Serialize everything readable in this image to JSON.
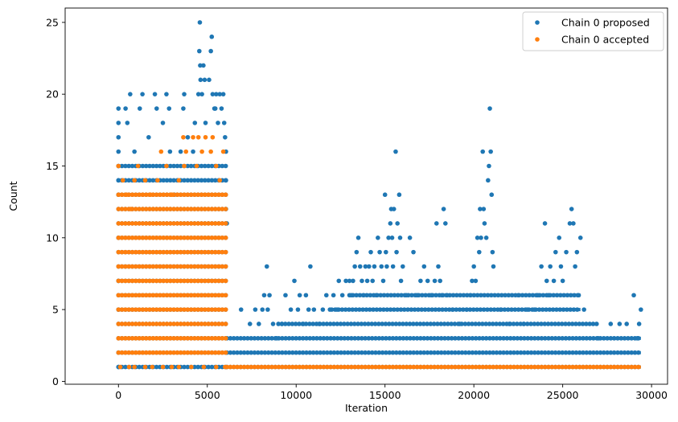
{
  "chart_data": {
    "type": "scatter",
    "title": "",
    "xlabel": "Iteration",
    "ylabel": "Count",
    "xlim": [
      -3000,
      30900
    ],
    "ylim": [
      -0.2,
      26
    ],
    "xticks": [
      0,
      5000,
      10000,
      15000,
      20000,
      25000,
      30000
    ],
    "yticks": [
      0,
      5,
      10,
      15,
      20,
      25
    ],
    "grid": false,
    "legend_position": "top-right",
    "series": [
      {
        "name": "Chain 0 proposed",
        "color": "#1f77b4",
        "points": [
          [
            0,
            1
          ],
          [
            0,
            2
          ],
          [
            0,
            5
          ],
          [
            0,
            7
          ],
          [
            0,
            10
          ],
          [
            0,
            13
          ],
          [
            0,
            14
          ],
          [
            0,
            15
          ],
          [
            0,
            16
          ],
          [
            0,
            17
          ],
          [
            0,
            18
          ],
          [
            0,
            19
          ],
          [
            400,
            19
          ],
          [
            500,
            18
          ],
          [
            660,
            20
          ],
          [
            900,
            16
          ],
          [
            1200,
            19
          ],
          [
            1350,
            20
          ],
          [
            1700,
            17
          ],
          [
            2050,
            20
          ],
          [
            2150,
            19
          ],
          [
            2500,
            18
          ],
          [
            2700,
            20
          ],
          [
            2850,
            19
          ],
          [
            2900,
            16
          ],
          [
            3150,
            13
          ],
          [
            3500,
            16
          ],
          [
            3650,
            19
          ],
          [
            3700,
            20
          ],
          [
            3900,
            17
          ],
          [
            4200,
            16
          ],
          [
            4300,
            18
          ],
          [
            4500,
            20
          ],
          [
            4580,
            25
          ],
          [
            4550,
            23
          ],
          [
            4600,
            22
          ],
          [
            4620,
            21
          ],
          [
            4700,
            20
          ],
          [
            4780,
            22
          ],
          [
            4850,
            21
          ],
          [
            4900,
            18
          ],
          [
            5100,
            21
          ],
          [
            5200,
            23
          ],
          [
            5250,
            24
          ],
          [
            5300,
            20
          ],
          [
            5400,
            19
          ],
          [
            5450,
            19
          ],
          [
            5500,
            20
          ],
          [
            5600,
            18
          ],
          [
            5700,
            20
          ],
          [
            5800,
            19
          ],
          [
            5900,
            20
          ],
          [
            5950,
            18
          ],
          [
            6000,
            17
          ],
          [
            6050,
            16
          ],
          [
            6050,
            14
          ],
          [
            6050,
            12
          ],
          [
            6100,
            11
          ],
          [
            6900,
            5
          ],
          [
            7400,
            4
          ],
          [
            7700,
            5
          ],
          [
            7900,
            4
          ],
          [
            8100,
            5
          ],
          [
            8200,
            6
          ],
          [
            8350,
            8
          ],
          [
            8400,
            5
          ],
          [
            8500,
            6
          ],
          [
            8700,
            4
          ],
          [
            8900,
            3
          ],
          [
            9200,
            4
          ],
          [
            9400,
            6
          ],
          [
            9700,
            5
          ],
          [
            9900,
            7
          ],
          [
            10100,
            5
          ],
          [
            10200,
            6
          ],
          [
            10400,
            4
          ],
          [
            10550,
            6
          ],
          [
            10700,
            5
          ],
          [
            10800,
            8
          ],
          [
            11000,
            5
          ],
          [
            11300,
            4
          ],
          [
            11500,
            5
          ],
          [
            11700,
            6
          ],
          [
            11900,
            5
          ],
          [
            12100,
            6
          ],
          [
            12300,
            5
          ],
          [
            12400,
            7
          ],
          [
            12600,
            6
          ],
          [
            12800,
            7
          ],
          [
            13000,
            7
          ],
          [
            13100,
            6
          ],
          [
            13200,
            7
          ],
          [
            13300,
            8
          ],
          [
            13400,
            9
          ],
          [
            13500,
            10
          ],
          [
            13600,
            8
          ],
          [
            13700,
            7
          ],
          [
            13800,
            6
          ],
          [
            13900,
            8
          ],
          [
            14000,
            7
          ],
          [
            14100,
            8
          ],
          [
            14200,
            9
          ],
          [
            14300,
            7
          ],
          [
            14400,
            8
          ],
          [
            14500,
            6
          ],
          [
            14600,
            10
          ],
          [
            14700,
            9
          ],
          [
            14800,
            8
          ],
          [
            14900,
            7
          ],
          [
            15000,
            13
          ],
          [
            15050,
            9
          ],
          [
            15100,
            8
          ],
          [
            15200,
            10
          ],
          [
            15300,
            11
          ],
          [
            15350,
            12
          ],
          [
            15400,
            10
          ],
          [
            15450,
            8
          ],
          [
            15500,
            12
          ],
          [
            15600,
            16
          ],
          [
            15650,
            9
          ],
          [
            15700,
            11
          ],
          [
            15800,
            13
          ],
          [
            15850,
            10
          ],
          [
            15900,
            7
          ],
          [
            16000,
            8
          ],
          [
            16200,
            6
          ],
          [
            16400,
            10
          ],
          [
            16600,
            9
          ],
          [
            16800,
            6
          ],
          [
            17000,
            7
          ],
          [
            17200,
            8
          ],
          [
            17400,
            7
          ],
          [
            17600,
            6
          ],
          [
            17800,
            7
          ],
          [
            17900,
            11
          ],
          [
            18000,
            8
          ],
          [
            18100,
            7
          ],
          [
            18200,
            6
          ],
          [
            18300,
            12
          ],
          [
            18400,
            11
          ],
          [
            18500,
            6
          ],
          [
            18800,
            5
          ],
          [
            19200,
            4
          ],
          [
            19600,
            5
          ],
          [
            19800,
            6
          ],
          [
            19900,
            7
          ],
          [
            20000,
            8
          ],
          [
            20100,
            7
          ],
          [
            20200,
            10
          ],
          [
            20300,
            9
          ],
          [
            20350,
            12
          ],
          [
            20400,
            10
          ],
          [
            20500,
            16
          ],
          [
            20550,
            12
          ],
          [
            20600,
            11
          ],
          [
            20700,
            10
          ],
          [
            20800,
            14
          ],
          [
            20850,
            15
          ],
          [
            20900,
            19
          ],
          [
            20950,
            16
          ],
          [
            21000,
            13
          ],
          [
            21050,
            9
          ],
          [
            21100,
            8
          ],
          [
            21500,
            5
          ],
          [
            22000,
            4
          ],
          [
            22500,
            6
          ],
          [
            22800,
            4
          ],
          [
            23000,
            5
          ],
          [
            23400,
            5
          ],
          [
            23600,
            6
          ],
          [
            23800,
            8
          ],
          [
            24000,
            11
          ],
          [
            24100,
            7
          ],
          [
            24200,
            6
          ],
          [
            24300,
            8
          ],
          [
            24500,
            7
          ],
          [
            24600,
            9
          ],
          [
            24800,
            10
          ],
          [
            24900,
            8
          ],
          [
            25000,
            7
          ],
          [
            25200,
            9
          ],
          [
            25400,
            11
          ],
          [
            25500,
            12
          ],
          [
            25600,
            11
          ],
          [
            25700,
            8
          ],
          [
            25800,
            9
          ],
          [
            25900,
            6
          ],
          [
            26000,
            10
          ],
          [
            26200,
            5
          ],
          [
            27000,
            3
          ],
          [
            27700,
            4
          ],
          [
            28200,
            4
          ],
          [
            28600,
            4
          ],
          [
            29000,
            6
          ],
          [
            29200,
            3
          ],
          [
            29300,
            4
          ],
          [
            29400,
            5
          ]
        ],
        "dense_runs": [
          [
            0,
            6100,
            1
          ],
          [
            0,
            6100,
            2
          ],
          [
            0,
            6100,
            3
          ],
          [
            0,
            6100,
            4
          ],
          [
            0,
            6100,
            5
          ],
          [
            0,
            6100,
            6
          ],
          [
            0,
            6100,
            7
          ],
          [
            0,
            6100,
            8
          ],
          [
            0,
            6100,
            9
          ],
          [
            0,
            6100,
            10
          ],
          [
            0,
            6100,
            11
          ],
          [
            0,
            6100,
            12
          ],
          [
            0,
            6100,
            13
          ],
          [
            0,
            6100,
            14
          ],
          [
            0,
            6100,
            15
          ],
          [
            6100,
            29400,
            1
          ],
          [
            6100,
            29400,
            2
          ],
          [
            6100,
            29400,
            3
          ],
          [
            9000,
            27000,
            4
          ],
          [
            12000,
            26000,
            5
          ],
          [
            13000,
            26000,
            6
          ]
        ]
      },
      {
        "name": "Chain 0 accepted",
        "color": "#ff7f0e",
        "points": [
          [
            0,
            15
          ],
          [
            250,
            14
          ],
          [
            450,
            13
          ],
          [
            700,
            12
          ],
          [
            900,
            14
          ],
          [
            1100,
            15
          ],
          [
            1500,
            14
          ],
          [
            1800,
            13
          ],
          [
            2200,
            14
          ],
          [
            2400,
            16
          ],
          [
            2700,
            15
          ],
          [
            3000,
            13
          ],
          [
            3400,
            14
          ],
          [
            3700,
            15
          ],
          [
            3650,
            17
          ],
          [
            3800,
            16
          ],
          [
            4200,
            17
          ],
          [
            4400,
            15
          ],
          [
            4500,
            17
          ],
          [
            4700,
            16
          ],
          [
            4900,
            17
          ],
          [
            5200,
            16
          ],
          [
            5300,
            17
          ],
          [
            5500,
            15
          ],
          [
            5700,
            14
          ],
          [
            5900,
            16
          ],
          [
            100,
            1
          ],
          [
            600,
            1
          ],
          [
            900,
            1
          ],
          [
            1500,
            1
          ],
          [
            1900,
            1
          ],
          [
            2500,
            1
          ],
          [
            3000,
            1
          ],
          [
            3400,
            1
          ],
          [
            4100,
            1
          ],
          [
            4800,
            1
          ],
          [
            5500,
            1
          ],
          [
            6000,
            1
          ]
        ],
        "dense_runs": [
          [
            0,
            6100,
            2
          ],
          [
            0,
            6100,
            3
          ],
          [
            0,
            6100,
            4
          ],
          [
            0,
            6100,
            5
          ],
          [
            0,
            6100,
            6
          ],
          [
            0,
            6100,
            7
          ],
          [
            0,
            6100,
            8
          ],
          [
            0,
            6100,
            9
          ],
          [
            0,
            6100,
            10
          ],
          [
            0,
            6100,
            11
          ],
          [
            0,
            6100,
            12
          ],
          [
            0,
            6100,
            13
          ],
          [
            6100,
            29400,
            1
          ]
        ]
      }
    ]
  }
}
